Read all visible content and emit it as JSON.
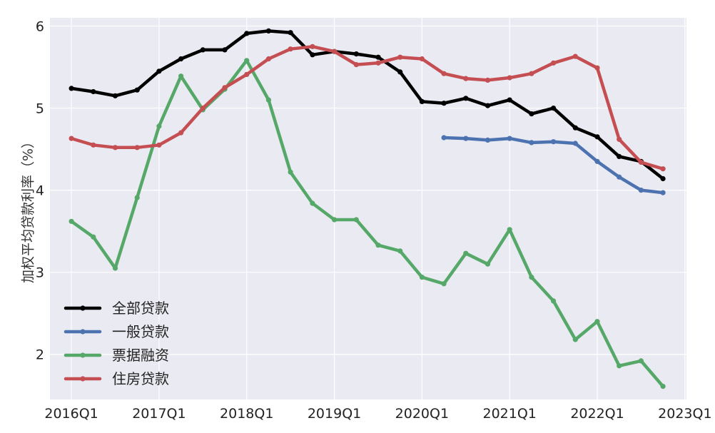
{
  "chart_data": {
    "type": "line",
    "title": "",
    "xlabel": "",
    "ylabel": "加权平均贷款利率（%）",
    "x_tick_labels": [
      "2016Q1",
      "2017Q1",
      "2018Q1",
      "2019Q1",
      "2020Q1",
      "2021Q1",
      "2022Q1",
      "2023Q1"
    ],
    "y_ticks": [
      2,
      3,
      4,
      5,
      6
    ],
    "ylim": [
      1.45,
      6.1
    ],
    "xlim": [
      "2015Q4",
      "2023Q1"
    ],
    "grid": true,
    "legend_position": "lower-left",
    "x": [
      "2016Q1",
      "2016Q2",
      "2016Q3",
      "2016Q4",
      "2017Q1",
      "2017Q2",
      "2017Q3",
      "2017Q4",
      "2018Q1",
      "2018Q2",
      "2018Q3",
      "2018Q4",
      "2019Q1",
      "2019Q2",
      "2019Q3",
      "2019Q4",
      "2020Q1",
      "2020Q2",
      "2020Q3",
      "2020Q4",
      "2021Q1",
      "2021Q2",
      "2021Q3",
      "2021Q4",
      "2022Q1",
      "2022Q2",
      "2022Q3",
      "2022Q4"
    ],
    "series": [
      {
        "name": "全部贷款",
        "color": "#000000",
        "values": [
          5.24,
          5.2,
          5.15,
          5.22,
          5.45,
          5.6,
          5.71,
          5.71,
          5.91,
          5.94,
          5.92,
          5.65,
          5.69,
          5.66,
          5.62,
          5.44,
          5.08,
          5.06,
          5.12,
          5.03,
          5.1,
          4.93,
          5.0,
          4.76,
          4.65,
          4.41,
          4.35,
          4.14
        ]
      },
      {
        "name": "一般贷款",
        "color": "#4c72b0",
        "values": [
          null,
          null,
          null,
          null,
          null,
          null,
          null,
          null,
          null,
          null,
          null,
          null,
          null,
          null,
          null,
          null,
          null,
          4.64,
          4.63,
          4.61,
          4.63,
          4.58,
          4.59,
          4.57,
          4.35,
          4.16,
          4.0,
          3.97
        ]
      },
      {
        "name": "票据融资",
        "color": "#55a868",
        "values": [
          3.62,
          3.43,
          3.05,
          3.91,
          4.78,
          5.39,
          4.98,
          5.23,
          5.58,
          5.1,
          4.22,
          3.84,
          3.64,
          3.64,
          3.33,
          3.26,
          2.94,
          2.86,
          3.23,
          3.1,
          3.52,
          2.94,
          2.65,
          2.18,
          2.4,
          1.86,
          1.92,
          1.61
        ]
      },
      {
        "name": "住房贷款",
        "color": "#c44e52",
        "values": [
          4.63,
          4.55,
          4.52,
          4.52,
          4.55,
          4.7,
          5.0,
          5.25,
          5.41,
          5.6,
          5.72,
          5.75,
          5.69,
          5.53,
          5.55,
          5.62,
          5.6,
          5.42,
          5.36,
          5.34,
          5.37,
          5.42,
          5.55,
          5.63,
          5.49,
          4.62,
          4.34,
          4.26
        ]
      }
    ]
  }
}
